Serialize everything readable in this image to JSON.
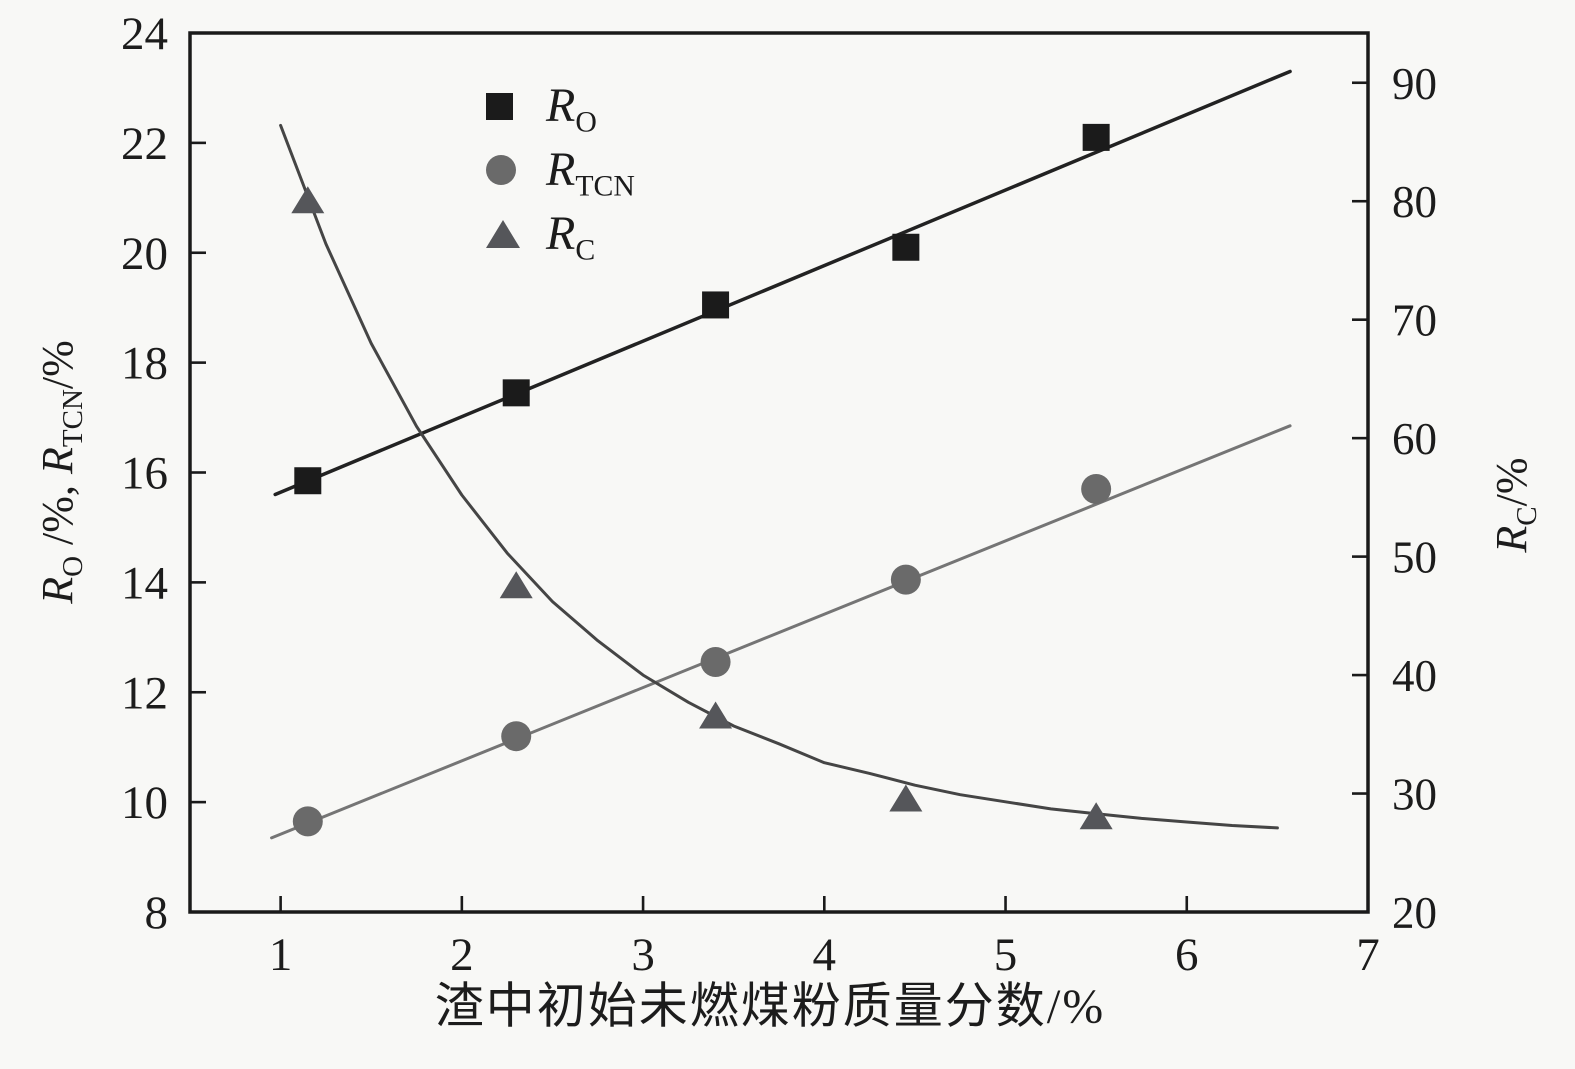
{
  "figure": {
    "background": "#f8f8f6",
    "frame_color": "#1a1a1a",
    "tick_color": "#1a1a1a",
    "tick_label_color": "#1c1c1c"
  },
  "axis_titles": {
    "left": {
      "r1": "R",
      "s1": "O",
      "mid": " /%, ",
      "r2": "R",
      "s2": "TCN",
      "tail": "/%"
    },
    "right": {
      "r": "R",
      "s": "C",
      "tail": "/%"
    }
  },
  "chart_data": {
    "type": "scatter",
    "title": "",
    "x_axis": {
      "label": "渣中初始未燃煤粉质量分数/%",
      "range": [
        0.5,
        7.0
      ],
      "ticks": [
        1,
        2,
        3,
        4,
        5,
        6,
        7
      ]
    },
    "y_axis_left": {
      "label": "R_O /%, R_TCN/%",
      "range": [
        8,
        24
      ],
      "ticks": [
        8,
        10,
        12,
        14,
        16,
        18,
        20,
        22,
        24
      ]
    },
    "y_axis_right": {
      "label": "R_C/%",
      "range": [
        20,
        94.2
      ],
      "ticks": [
        20,
        30,
        40,
        50,
        60,
        70,
        80,
        90
      ]
    },
    "grid": false,
    "legend_position": "upper-left-inside",
    "legend": [
      {
        "marker": "square",
        "main": "R",
        "sub": "O"
      },
      {
        "marker": "circle",
        "main": "R",
        "sub": "TCN"
      },
      {
        "marker": "triangle",
        "main": "R",
        "sub": "C"
      }
    ],
    "series": [
      {
        "name": "R_O",
        "axis": "left",
        "marker": "square",
        "marker_color": "#1b1b1b",
        "line_color": "#222222",
        "line_width": 3.5,
        "x": [
          1.15,
          2.3,
          3.4,
          4.45,
          5.5
        ],
        "y": [
          15.85,
          17.45,
          19.05,
          20.1,
          22.1
        ],
        "trend": [
          [
            0.97,
            15.6
          ],
          [
            6.57,
            23.3
          ]
        ]
      },
      {
        "name": "R_TCN",
        "axis": "left",
        "marker": "circle",
        "marker_color": "#6a6a6a",
        "line_color": "#757575",
        "line_width": 3,
        "x": [
          1.15,
          2.3,
          3.4,
          4.45,
          5.5
        ],
        "y": [
          9.65,
          11.2,
          12.55,
          14.05,
          15.7
        ],
        "trend": [
          [
            0.95,
            9.35
          ],
          [
            6.57,
            16.85
          ]
        ]
      },
      {
        "name": "R_C",
        "axis": "right",
        "marker": "triangle",
        "marker_color": "#55565a",
        "line_color": "#454545",
        "line_width": 3,
        "x": [
          1.15,
          2.3,
          3.4,
          4.45,
          5.5
        ],
        "y": [
          80,
          47.5,
          36.5,
          29.5,
          28
        ],
        "curve": [
          [
            1.0,
            86.4
          ],
          [
            1.25,
            76.4
          ],
          [
            1.5,
            68.0
          ],
          [
            1.75,
            61.0
          ],
          [
            2.0,
            55.2
          ],
          [
            2.25,
            50.3
          ],
          [
            2.5,
            46.2
          ],
          [
            2.75,
            42.9
          ],
          [
            3.0,
            40.0
          ],
          [
            3.25,
            37.7
          ],
          [
            3.5,
            35.7
          ],
          [
            3.75,
            34.2
          ],
          [
            4.0,
            32.6
          ],
          [
            4.25,
            31.7
          ],
          [
            4.5,
            30.7
          ],
          [
            4.75,
            29.9
          ],
          [
            5.0,
            29.3
          ],
          [
            5.25,
            28.7
          ],
          [
            5.5,
            28.3
          ],
          [
            5.75,
            27.9
          ],
          [
            6.0,
            27.6
          ],
          [
            6.25,
            27.3
          ],
          [
            6.5,
            27.1
          ]
        ]
      }
    ]
  }
}
